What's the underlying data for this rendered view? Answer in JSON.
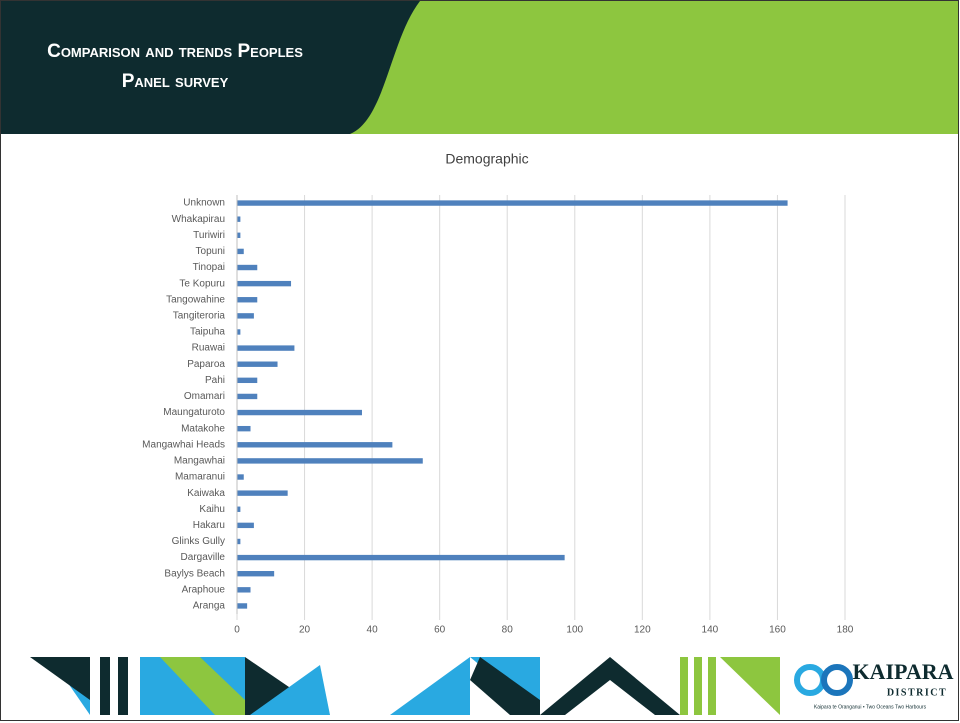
{
  "header": {
    "title_lines": [
      "Comparison and trends Peoples",
      "Panel survey"
    ]
  },
  "chart_data": {
    "type": "hbar",
    "title": "Demographic",
    "categories": [
      "Unknown",
      "Whakapirau",
      "Turiwiri",
      "Topuni",
      "Tinopai",
      "Te Kopuru",
      "Tangowahine",
      "Tangiteroria",
      "Taipuha",
      "Ruawai",
      "Paparoa",
      "Pahi",
      "Omamari",
      "Maungaturoto",
      "Matakohe",
      "Mangawhai Heads",
      "Mangawhai",
      "Mamaranui",
      "Kaiwaka",
      "Kaihu",
      "Hakaru",
      "Glinks Gully",
      "Dargaville",
      "Baylys Beach",
      "Araphoue",
      "Aranga"
    ],
    "values": [
      163,
      1,
      1,
      2,
      6,
      16,
      6,
      5,
      1,
      17,
      12,
      6,
      6,
      37,
      4,
      46,
      55,
      2,
      15,
      1,
      5,
      1,
      97,
      11,
      4,
      3
    ],
    "color": "#4f81bd",
    "xlim": [
      0,
      180
    ],
    "xticks": [
      0,
      20,
      40,
      60,
      80,
      100,
      120,
      140,
      160,
      180
    ],
    "grid": true
  },
  "footer": {
    "logo_name": "KAIPARA",
    "logo_sub": "DISTRICT",
    "tagline": "Kaipara te Oranganui • Two Oceans Two Harbours"
  }
}
